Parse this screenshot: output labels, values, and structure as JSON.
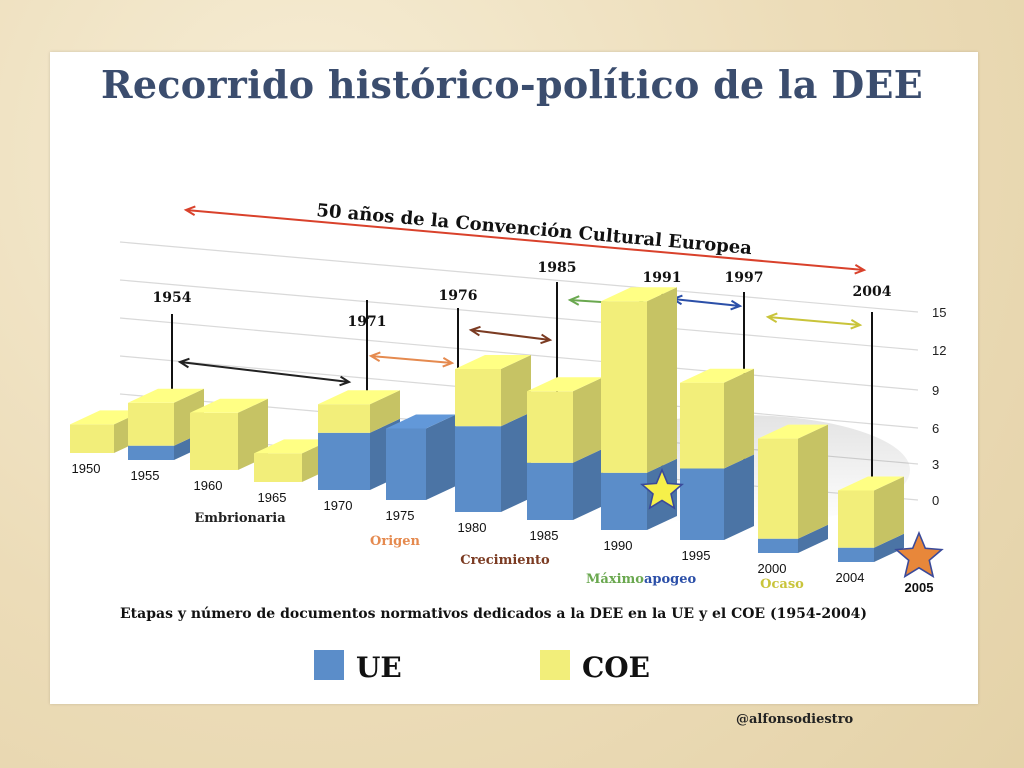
{
  "slide": {
    "title": "Recorrido histórico-político de la DEE",
    "credit": "@alfonsodiestro"
  },
  "colors": {
    "ue": "#5b8dc9",
    "coe": "#f2ee7a",
    "span_arrow": "#d9412b",
    "origen": "#e58a4f",
    "crecimiento": "#7b3b22",
    "maximo": "#6aa84f",
    "apogeo": "#2b4fa8",
    "ocaso": "#c9c43a",
    "embrionaria": "#222222",
    "star_1991": "#f6f04a",
    "star_2005": "#e8873a"
  },
  "chart_data": {
    "type": "bar",
    "subtype": "stacked-3d",
    "title": "50 años de la Convención Cultural Europea",
    "caption": "Etapas y número de documentos normativos dedicados a la DEE en la UE y el COE (1954-2004)",
    "categories": [
      "1950",
      "1955",
      "1960",
      "1965",
      "1970",
      "1975",
      "1980",
      "1985",
      "1990",
      "1995",
      "2000",
      "2004"
    ],
    "series": [
      {
        "name": "UE",
        "values": [
          0,
          1,
          0,
          0,
          4,
          5,
          6,
          4,
          4,
          5,
          1,
          1
        ]
      },
      {
        "name": "COE",
        "values": [
          2,
          3,
          4,
          2,
          2,
          0,
          4,
          5,
          12,
          6,
          7,
          4
        ]
      }
    ],
    "ylim": [
      0,
      15
    ],
    "yticks": [
      "15",
      "12",
      "9",
      "6",
      "3",
      "0"
    ],
    "grid": true,
    "legend": "bottom",
    "year_markers": [
      "1954",
      "1971",
      "1976",
      "1985",
      "1991",
      "1997",
      "2004"
    ],
    "stages": [
      "Embrionaria",
      "Origen",
      "Crecimiento",
      "Máximo",
      "apogeo",
      "Ocaso"
    ],
    "star_label": "2005"
  }
}
